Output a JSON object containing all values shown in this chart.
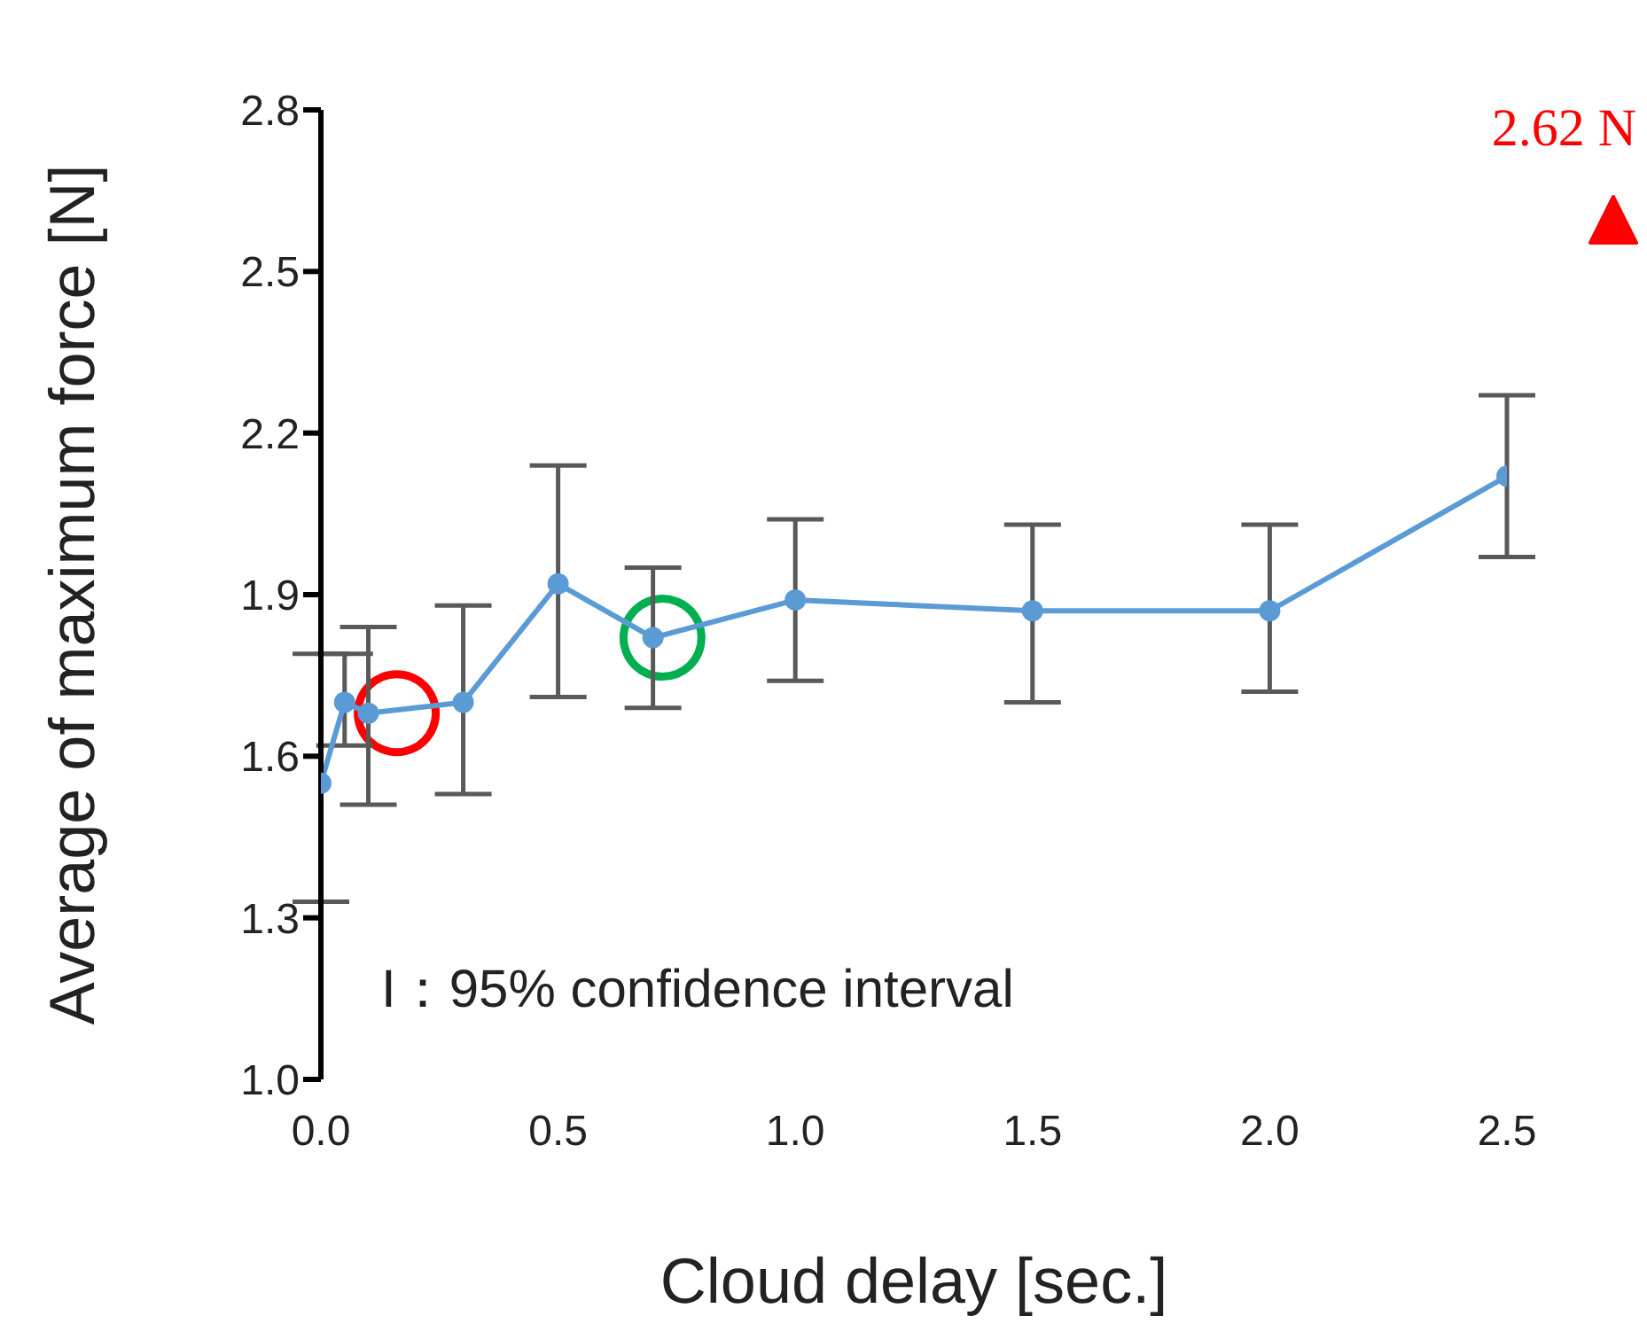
{
  "chart_data": {
    "type": "line",
    "xlabel": "Cloud delay [sec.]",
    "ylabel": "Average of maximum force [N]",
    "xlim": [
      0,
      2.5
    ],
    "xticks": [
      {
        "value": 0,
        "label": "0.0"
      },
      {
        "value": 0.5,
        "label": "0.5"
      },
      {
        "value": 1,
        "label": "1.0"
      },
      {
        "value": 1.5,
        "label": "1.5"
      },
      {
        "value": 2,
        "label": "2.0"
      },
      {
        "value": 2.5,
        "label": "2.5"
      }
    ],
    "ylim": [
      1,
      2.8
    ],
    "yticks": [
      {
        "value": 1,
        "label": "1.0"
      },
      {
        "value": 1.3,
        "label": "1.3"
      },
      {
        "value": 1.6,
        "label": "1.6"
      },
      {
        "value": 1.9,
        "label": "1.9"
      },
      {
        "value": 2.2,
        "label": "2.2"
      },
      {
        "value": 2.5,
        "label": "2.5"
      },
      {
        "value": 2.8,
        "label": "2.8"
      }
    ],
    "grid": false,
    "legend": false,
    "marker": "circle",
    "line_style": "solid",
    "annotations": [
      "I：95% confidence interval",
      "2.62 N"
    ],
    "series": [
      {
        "color": "#5b9bd5",
        "x": [
          0,
          0.05,
          0.1,
          0.3,
          0.5,
          0.7,
          1,
          1.5,
          2,
          2.5
        ],
        "values": [
          1.55,
          1.7,
          1.68,
          1.7,
          1.92,
          1.82,
          1.89,
          1.87,
          1.87,
          2.12
        ],
        "errors": [
          [
            1.33,
            1.79
          ],
          [
            1.62,
            1.79
          ],
          [
            1.51,
            1.84
          ],
          [
            1.53,
            1.88
          ],
          [
            1.71,
            2.14
          ],
          [
            1.69,
            1.95
          ],
          [
            1.74,
            2.04
          ],
          [
            1.7,
            2.03
          ],
          [
            1.72,
            2.03
          ],
          [
            1.97,
            2.27
          ]
        ]
      }
    ]
  }
}
